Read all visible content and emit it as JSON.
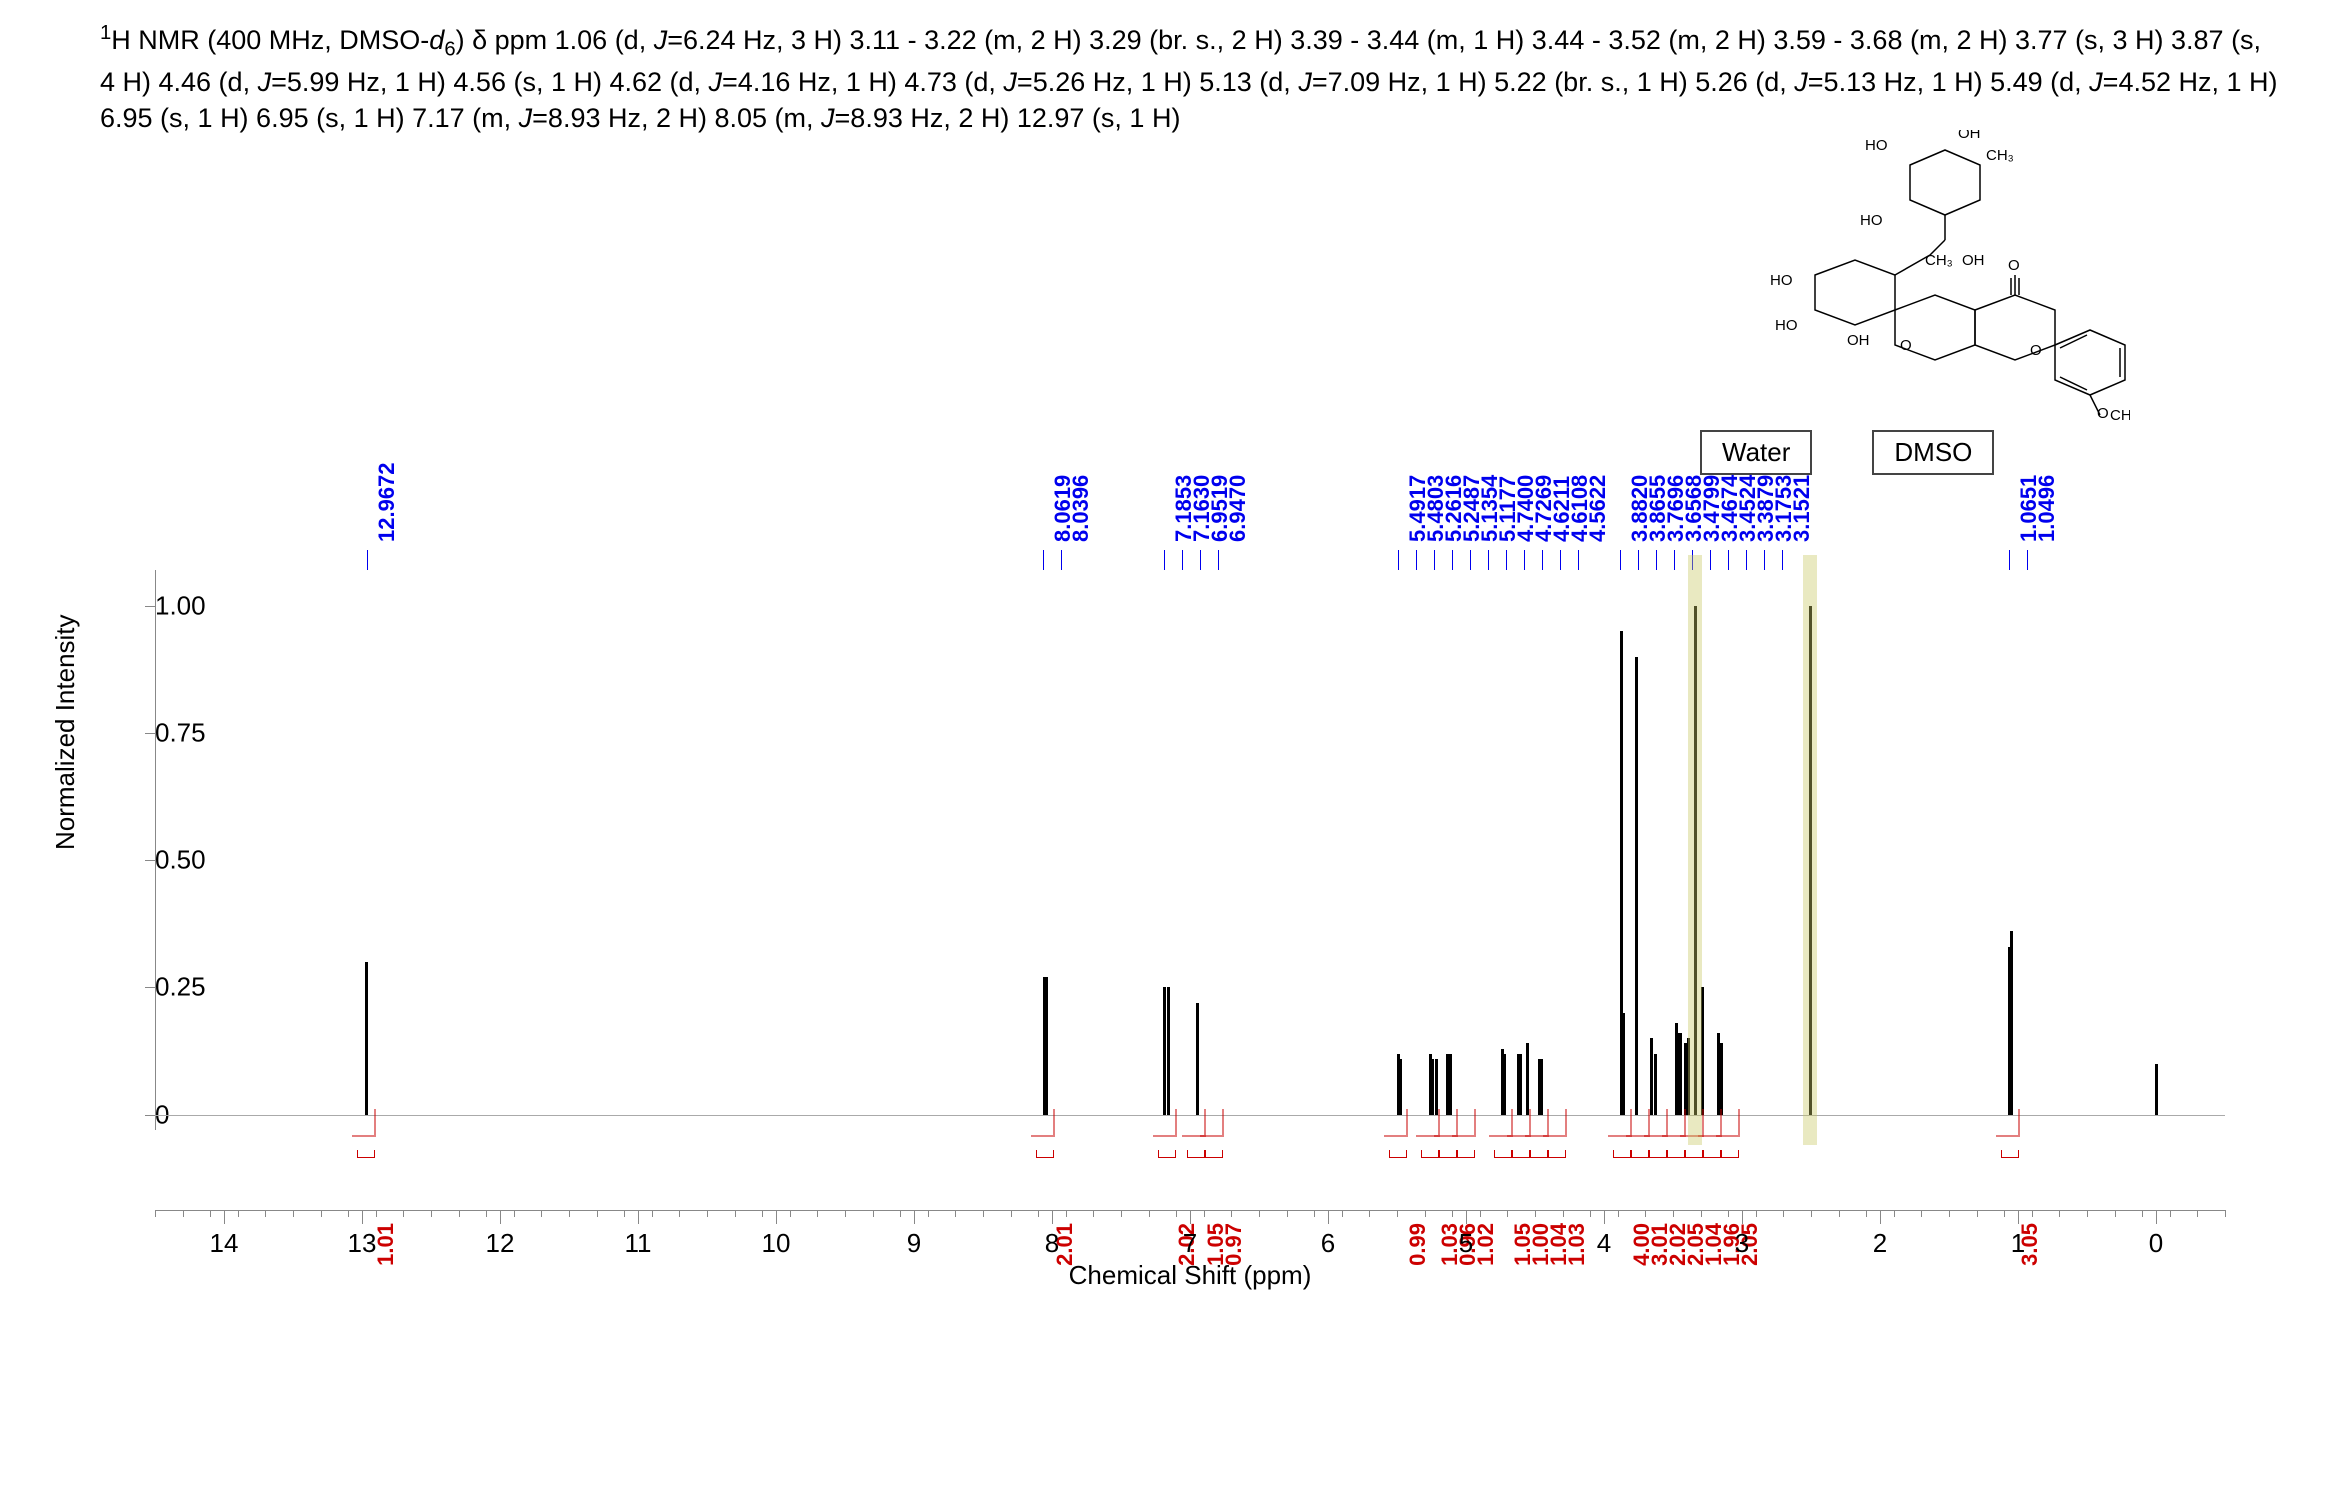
{
  "description": "¹H NMR (400 MHz, DMSO-d₆) δ ppm 1.06 (d, J=6.24 Hz, 3 H) 3.11 - 3.22 (m, 2 H) 3.29 (br. s., 2 H) 3.39 - 3.44 (m, 1 H) 3.44 - 3.52 (m, 2 H) 3.59 - 3.68 (m, 2 H) 3.77 (s, 3 H) 3.87 (s, 4 H) 4.46 (d, J=5.99 Hz, 1 H) 4.56 (s, 1 H) 4.62 (d, J=4.16 Hz, 1 H) 4.73 (d, J=5.26 Hz, 1 H) 5.13 (d, J=7.09 Hz, 1 H) 5.22 (br. s., 1 H) 5.26 (d, J=5.13 Hz, 1 H) 5.49 (d, J=4.52 Hz, 1 H) 6.95 (s, 1 H) 6.95 (s, 1 H) 7.17 (m, J=8.93 Hz, 2 H) 8.05 (m, J=8.93 Hz, 2 H) 12.97 (s, 1 H)",
  "annotations": {
    "water": "Water",
    "dmso": "DMSO"
  },
  "x_axis": {
    "title": "Chemical Shift (ppm)",
    "min": -0.5,
    "max": 14.5,
    "major_ticks": [
      0,
      1,
      2,
      3,
      4,
      5,
      6,
      7,
      8,
      9,
      10,
      11,
      12,
      13,
      14
    ],
    "minor_step": 0.2
  },
  "y_axis": {
    "title": "Normalized Intensity",
    "min": -0.03,
    "max": 1.07,
    "ticks": [
      0,
      0.25,
      0.5,
      0.75,
      1.0
    ],
    "labels": [
      "0",
      "0.25",
      "0.50",
      "0.75",
      "1.00"
    ]
  },
  "peak_labels": [
    {
      "ppm": 12.9672,
      "text": "12.9672"
    },
    {
      "ppm": 8.0619,
      "text": "8.0619"
    },
    {
      "ppm": 8.0396,
      "text": "8.0396"
    },
    {
      "ppm": 7.1853,
      "text": "7.1853"
    },
    {
      "ppm": 7.163,
      "text": "7.1630"
    },
    {
      "ppm": 6.9519,
      "text": "6.9519"
    },
    {
      "ppm": 6.947,
      "text": "6.9470"
    },
    {
      "ppm": 5.4917,
      "text": "5.4917"
    },
    {
      "ppm": 5.4803,
      "text": "5.4803"
    },
    {
      "ppm": 5.2616,
      "text": "5.2616"
    },
    {
      "ppm": 5.2487,
      "text": "5.2487"
    },
    {
      "ppm": 5.1354,
      "text": "5.1354"
    },
    {
      "ppm": 5.1177,
      "text": "5.1177"
    },
    {
      "ppm": 4.74,
      "text": "4.7400"
    },
    {
      "ppm": 4.7269,
      "text": "4.7269"
    },
    {
      "ppm": 4.6211,
      "text": "4.6211"
    },
    {
      "ppm": 4.6108,
      "text": "4.6108"
    },
    {
      "ppm": 4.5622,
      "text": "4.5622"
    },
    {
      "ppm": 3.882,
      "text": "3.8820"
    },
    {
      "ppm": 3.8655,
      "text": "3.8655"
    },
    {
      "ppm": 3.7696,
      "text": "3.7696"
    },
    {
      "ppm": 3.6568,
      "text": "3.6568"
    },
    {
      "ppm": 3.4799,
      "text": "3.4799"
    },
    {
      "ppm": 3.4674,
      "text": "3.4674"
    },
    {
      "ppm": 3.4524,
      "text": "3.4524"
    },
    {
      "ppm": 3.3879,
      "text": "3.3879"
    },
    {
      "ppm": 3.1753,
      "text": "3.1753"
    },
    {
      "ppm": 3.1521,
      "text": "3.1521"
    },
    {
      "ppm": 1.0651,
      "text": "1.0651"
    },
    {
      "ppm": 1.0496,
      "text": "1.0496"
    }
  ],
  "peaks": [
    {
      "ppm": 12.97,
      "h": 0.3
    },
    {
      "ppm": 8.06,
      "h": 0.27
    },
    {
      "ppm": 8.04,
      "h": 0.27
    },
    {
      "ppm": 7.185,
      "h": 0.25
    },
    {
      "ppm": 7.163,
      "h": 0.25
    },
    {
      "ppm": 6.952,
      "h": 0.22
    },
    {
      "ppm": 6.947,
      "h": 0.22
    },
    {
      "ppm": 5.49,
      "h": 0.12
    },
    {
      "ppm": 5.48,
      "h": 0.11
    },
    {
      "ppm": 5.26,
      "h": 0.12
    },
    {
      "ppm": 5.25,
      "h": 0.11
    },
    {
      "ppm": 5.22,
      "h": 0.11
    },
    {
      "ppm": 5.135,
      "h": 0.12
    },
    {
      "ppm": 5.118,
      "h": 0.12
    },
    {
      "ppm": 4.74,
      "h": 0.13
    },
    {
      "ppm": 4.727,
      "h": 0.12
    },
    {
      "ppm": 4.62,
      "h": 0.12
    },
    {
      "ppm": 4.61,
      "h": 0.12
    },
    {
      "ppm": 4.56,
      "h": 0.14
    },
    {
      "ppm": 4.47,
      "h": 0.11
    },
    {
      "ppm": 4.46,
      "h": 0.11
    },
    {
      "ppm": 3.88,
      "h": 0.95
    },
    {
      "ppm": 3.865,
      "h": 0.2
    },
    {
      "ppm": 3.77,
      "h": 0.9
    },
    {
      "ppm": 3.656,
      "h": 0.15
    },
    {
      "ppm": 3.63,
      "h": 0.12
    },
    {
      "ppm": 3.48,
      "h": 0.18
    },
    {
      "ppm": 3.467,
      "h": 0.16
    },
    {
      "ppm": 3.452,
      "h": 0.16
    },
    {
      "ppm": 3.41,
      "h": 0.14
    },
    {
      "ppm": 3.388,
      "h": 0.15
    },
    {
      "ppm": 3.34,
      "h": 1.0
    },
    {
      "ppm": 3.29,
      "h": 0.25
    },
    {
      "ppm": 3.175,
      "h": 0.16
    },
    {
      "ppm": 3.152,
      "h": 0.14
    },
    {
      "ppm": 2.51,
      "h": 1.0
    },
    {
      "ppm": 1.065,
      "h": 0.33
    },
    {
      "ppm": 1.05,
      "h": 0.36
    },
    {
      "ppm": 0.0,
      "h": 0.1
    }
  ],
  "solvent_bands": [
    {
      "ppm": 3.34,
      "label": "Water"
    },
    {
      "ppm": 2.51,
      "label": "DMSO"
    }
  ],
  "integrals": [
    {
      "ppm": 12.97,
      "text": "1.01"
    },
    {
      "ppm": 8.05,
      "text": "2.01"
    },
    {
      "ppm": 7.17,
      "text": "2.02"
    },
    {
      "ppm": 6.96,
      "text": "1.05"
    },
    {
      "ppm": 6.94,
      "text": "0.97"
    },
    {
      "ppm": 5.49,
      "text": "0.99"
    },
    {
      "ppm": 5.26,
      "text": "1.03"
    },
    {
      "ppm": 5.22,
      "text": "0.96"
    },
    {
      "ppm": 5.13,
      "text": "1.02"
    },
    {
      "ppm": 4.73,
      "text": "1.05"
    },
    {
      "ppm": 4.62,
      "text": "1.00"
    },
    {
      "ppm": 4.56,
      "text": "1.04"
    },
    {
      "ppm": 4.46,
      "text": "1.03"
    },
    {
      "ppm": 3.87,
      "text": "4.00"
    },
    {
      "ppm": 3.77,
      "text": "3.01"
    },
    {
      "ppm": 3.64,
      "text": "2.02"
    },
    {
      "ppm": 3.48,
      "text": "2.05"
    },
    {
      "ppm": 3.42,
      "text": "1.04"
    },
    {
      "ppm": 3.29,
      "text": "1.96"
    },
    {
      "ppm": 3.16,
      "text": "2.05"
    },
    {
      "ppm": 1.06,
      "text": "3.05"
    }
  ],
  "colors": {
    "peak_label": "#0000ee",
    "integral_label": "#cc0000",
    "axis": "#888888",
    "band": "rgba(200,200,100,0.4)"
  }
}
